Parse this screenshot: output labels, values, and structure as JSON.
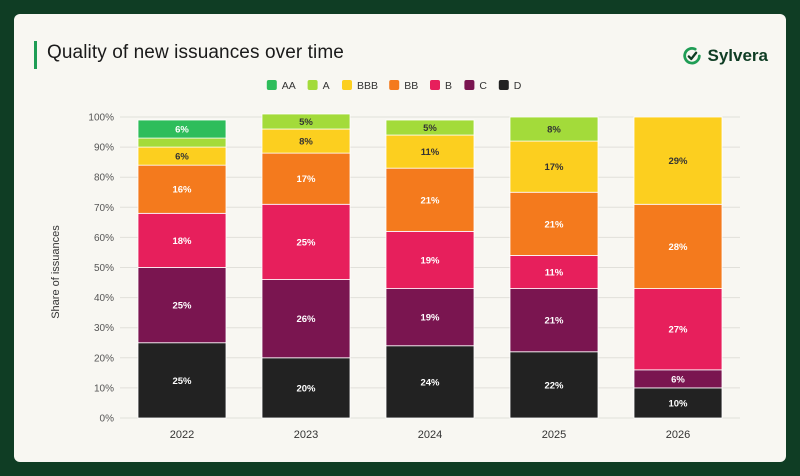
{
  "header": {
    "title": "Quality of new issuances over time",
    "brand_name": "Sylvera",
    "brand_icon": "sylvera-logo-icon"
  },
  "colors": {
    "page_background": "#0f3d24",
    "card_background": "#f8f7f2",
    "accent": "#1f9d55"
  },
  "chart_data": {
    "type": "bar",
    "stacked": true,
    "title": "",
    "xlabel": "",
    "ylabel": "Share of issuances",
    "categories": [
      "2022",
      "2023",
      "2024",
      "2025",
      "2026"
    ],
    "ylim": [
      0,
      100
    ],
    "yticks": [
      "0%",
      "10%",
      "20%",
      "30%",
      "40%",
      "50%",
      "60%",
      "70%",
      "80%",
      "90%",
      "100%"
    ],
    "grid": true,
    "legend_position": "top",
    "series": [
      {
        "name": "AA",
        "color": "#2ebd5b",
        "values": [
          6,
          0,
          0,
          0,
          0
        ],
        "labels": [
          "6%",
          "",
          "",
          "",
          ""
        ]
      },
      {
        "name": "A",
        "color": "#a3db3a",
        "values": [
          3,
          5,
          5,
          8,
          0
        ],
        "labels": [
          "",
          "5%",
          "5%",
          "8%",
          ""
        ]
      },
      {
        "name": "BBB",
        "color": "#fccf1f",
        "values": [
          6,
          8,
          11,
          17,
          29
        ],
        "labels": [
          "6%",
          "8%",
          "11%",
          "17%",
          "29%"
        ]
      },
      {
        "name": "BB",
        "color": "#f47a1d",
        "values": [
          16,
          17,
          21,
          21,
          28
        ],
        "labels": [
          "16%",
          "17%",
          "21%",
          "21%",
          "28%"
        ]
      },
      {
        "name": "B",
        "color": "#e71f5c",
        "values": [
          18,
          25,
          19,
          11,
          27
        ],
        "labels": [
          "18%",
          "25%",
          "19%",
          "11%",
          "27%"
        ]
      },
      {
        "name": "C",
        "color": "#7a1550",
        "values": [
          25,
          26,
          19,
          21,
          6
        ],
        "labels": [
          "25%",
          "26%",
          "19%",
          "21%",
          "6%"
        ]
      },
      {
        "name": "D",
        "color": "#222222",
        "values": [
          25,
          20,
          24,
          22,
          10
        ],
        "labels": [
          "25%",
          "20%",
          "24%",
          "22%",
          "10%"
        ]
      }
    ]
  }
}
